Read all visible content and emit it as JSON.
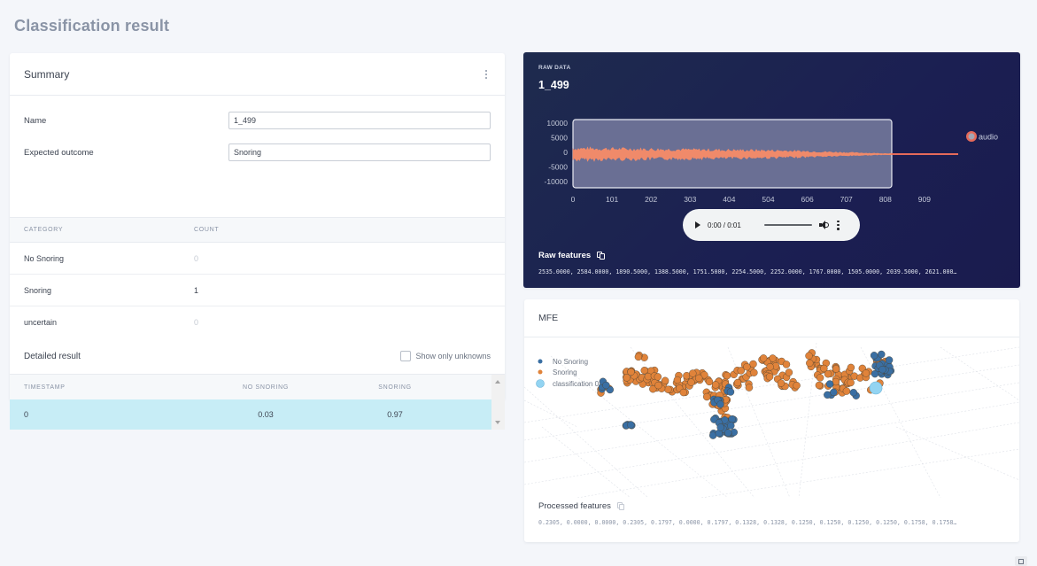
{
  "page": {
    "title": "Classification result"
  },
  "summary": {
    "title": "Summary",
    "menu_icon": "kebab-icon",
    "fields": [
      {
        "label": "Name",
        "value": "1_499"
      },
      {
        "label": "Expected outcome",
        "value": "Snoring"
      }
    ],
    "category_table": {
      "headers": [
        "CATEGORY",
        "COUNT"
      ],
      "rows": [
        {
          "category": "No Snoring",
          "count": "0"
        },
        {
          "category": "Snoring",
          "count": "1"
        },
        {
          "category": "uncertain",
          "count": "0"
        }
      ]
    },
    "detailed": {
      "title": "Detailed result",
      "checkbox_label": "Show only unknowns",
      "checkbox_checked": false,
      "headers": [
        "TIMESTAMP",
        "NO SNORING",
        "SNORING"
      ],
      "rows": [
        {
          "timestamp": "0",
          "no_snoring": "0.03",
          "snoring": "0.97"
        }
      ]
    }
  },
  "raw_data": {
    "label": "RAW DATA",
    "name": "1_499",
    "legend": "audio",
    "y_ticks": [
      "10000",
      "5000",
      "0",
      "-5000",
      "-10000"
    ],
    "x_ticks": [
      "0",
      "101",
      "202",
      "303",
      "404",
      "504",
      "606",
      "707",
      "808",
      "909"
    ],
    "colors": {
      "wave": "#f08a6a",
      "window": "#6a6f94",
      "background": "#1c2150"
    },
    "audio": {
      "time": "0:00 / 0:01"
    },
    "features_title": "Raw features",
    "features_values": "2535.0000, 2584.0000, 1890.5000, 1388.5000, 1751.5000, 2254.5000, 2252.0000, 1767.0000, 1505.0000, 2039.5000, 2621.000…"
  },
  "mfe": {
    "title": "MFE",
    "legend": [
      {
        "label": "No Snoring",
        "color": "#3a6fa3"
      },
      {
        "label": "Snoring",
        "color": "#e0833a"
      },
      {
        "label": "classification 0",
        "color": "#93d4f2"
      }
    ],
    "features_title": "Processed features",
    "features_values": "0.2305, 0.0000, 0.0000, 0.2305, 0.1797, 0.0000, 0.1797, 0.1328, 0.1328, 0.1250, 0.1250, 0.1250, 0.1250, 0.1758, 0.1758…"
  }
}
